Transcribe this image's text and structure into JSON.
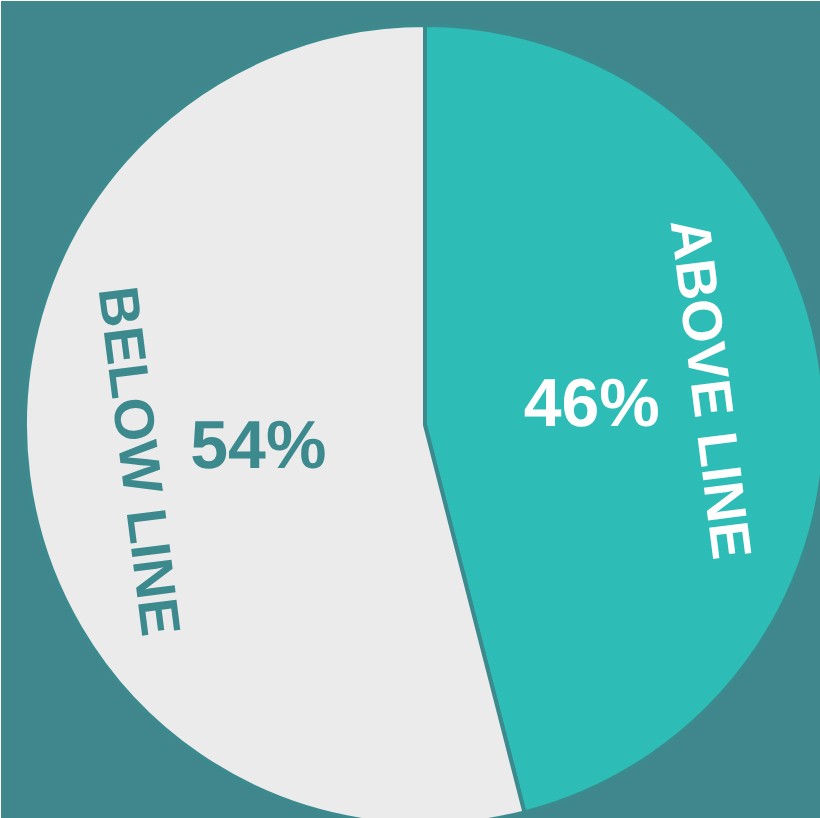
{
  "chart_data": {
    "type": "pie",
    "categories": [
      "ABOVE LINE",
      "BELOW LINE"
    ],
    "values": [
      46,
      54
    ],
    "colors": [
      "#2ebdb6",
      "#ebebeb"
    ],
    "value_labels": [
      "46%",
      "54%"
    ],
    "legend": false
  }
}
